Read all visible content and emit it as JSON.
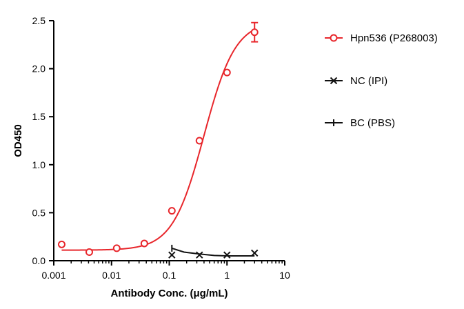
{
  "chart_data": {
    "type": "scatter",
    "xscale": "log",
    "xlim": [
      0.001,
      10
    ],
    "ylim": [
      0,
      2.5
    ],
    "xticks": [
      0.001,
      0.01,
      0.1,
      1,
      10
    ],
    "xtick_labels": [
      "0.001",
      "0.01",
      "0.1",
      "1",
      "10"
    ],
    "yticks": [
      0,
      0.5,
      1.0,
      1.5,
      2.0,
      2.5
    ],
    "ytick_labels": [
      "0.0",
      "0.5",
      "1.0",
      "1.5",
      "2.0",
      "2.5"
    ],
    "xlabel": "Antibody Conc. (μg/mL)",
    "ylabel": "OD450",
    "grid": false,
    "legend_position": "right",
    "series": [
      {
        "name": "Hpn536 (P268003)",
        "color": "#e8262b",
        "marker": "open-circle",
        "x": [
          0.00137,
          0.00412,
          0.0123,
          0.037,
          0.111,
          0.333,
          1,
          3
        ],
        "y": [
          0.17,
          0.09,
          0.13,
          0.18,
          0.52,
          1.25,
          1.96,
          2.38
        ],
        "error": [
          0,
          0,
          0,
          0,
          0,
          0,
          0,
          0.1
        ],
        "fit": {
          "bottom": 0.11,
          "top": 2.5,
          "ec50": 0.4,
          "hill": 1.6,
          "xmin": 0.00137,
          "xmax": 3
        }
      },
      {
        "name": "NC (IPI)",
        "color": "#111111",
        "marker": "x",
        "x": [
          0.111,
          0.333,
          1,
          3
        ],
        "y": [
          0.06,
          0.06,
          0.06,
          0.08
        ],
        "error": [
          0,
          0,
          0,
          0
        ],
        "fit_points": [
          [
            0.111,
            0.13
          ],
          [
            0.18,
            0.09
          ],
          [
            0.333,
            0.07
          ],
          [
            0.6,
            0.055
          ],
          [
            1,
            0.05
          ],
          [
            3,
            0.05
          ]
        ]
      },
      {
        "name": "BC (PBS)",
        "color": "#111111",
        "marker": "plus",
        "x": [],
        "y": [],
        "error": []
      }
    ]
  }
}
